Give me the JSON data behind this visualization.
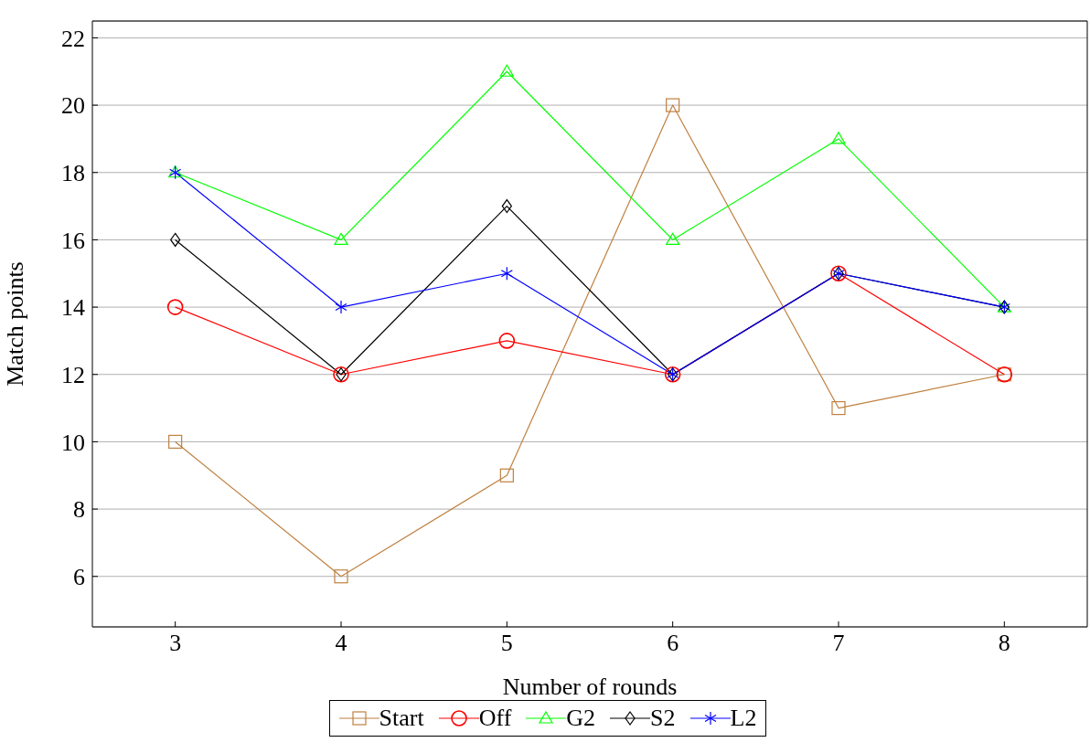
{
  "chart_data": {
    "type": "line",
    "xlabel": "Number of rounds",
    "ylabel": "Match points",
    "x": [
      3,
      4,
      5,
      6,
      7,
      8
    ],
    "xlim": [
      2.5,
      8.5
    ],
    "xticks": [
      3,
      4,
      5,
      6,
      7,
      8
    ],
    "ylim": [
      4.5,
      22.5
    ],
    "yticks": [
      6,
      8,
      10,
      12,
      14,
      16,
      18,
      20,
      22
    ],
    "grid": "y",
    "legend": "bottom",
    "line_style": "solid",
    "series": [
      {
        "name": "Start",
        "color": "#bf8040",
        "marker": "square",
        "values": [
          10,
          6,
          9,
          20,
          11,
          12
        ]
      },
      {
        "name": "Off",
        "color": "#ff0000",
        "marker": "circle",
        "values": [
          14,
          12,
          13,
          12,
          15,
          12
        ]
      },
      {
        "name": "G2",
        "color": "#00ff00",
        "marker": "triangle",
        "values": [
          18,
          16,
          21,
          16,
          19,
          14
        ]
      },
      {
        "name": "S2",
        "color": "#000000",
        "marker": "diamond",
        "values": [
          16,
          12,
          17,
          12,
          15,
          14
        ]
      },
      {
        "name": "L2",
        "color": "#0000ff",
        "marker": "cross",
        "values": [
          18,
          14,
          15,
          12,
          15,
          14
        ]
      }
    ]
  }
}
